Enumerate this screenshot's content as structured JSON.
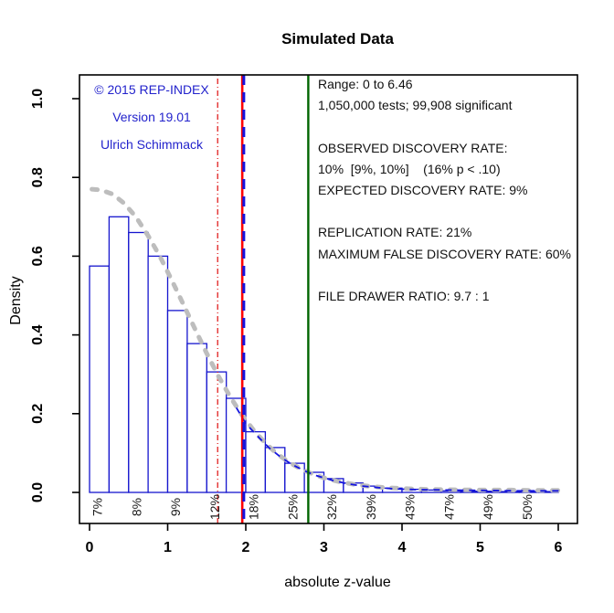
{
  "title": "Simulated Data",
  "axes": {
    "xlabel": "absolute z-value",
    "ylabel": "Density",
    "x_ticks": [
      "0",
      "1",
      "2",
      "3",
      "4",
      "5",
      "6"
    ],
    "y_ticks": [
      "0.0",
      "0.2",
      "0.4",
      "0.6",
      "0.8",
      "1.0"
    ]
  },
  "annotations": {
    "credit": {
      "color": "#2323CC",
      "lines": [
        "© 2015 REP-INDEX",
        "Version 19.01",
        "Ulrich Schimmack"
      ]
    },
    "stats": {
      "lines": [
        "Range: 0 to 6.46",
        "1,050,000 tests; 99,908 significant",
        "",
        "OBSERVED DISCOVERY RATE:",
        "10%  [9%, 10%]    (16% p < .10)",
        "EXPECTED DISCOVERY RATE: 9%",
        "",
        "REPLICATION RATE: 21%",
        "MAXIMUM FALSE DISCOVERY RATE: 60%",
        "",
        "FILE DRAWER RATIO: 9.7 : 1"
      ]
    }
  },
  "chart_data": {
    "type": "bar",
    "subtype": "histogram_with_density_curves",
    "title": "Simulated Data",
    "xlabel": "absolute z-value",
    "ylabel": "Density",
    "xlim": [
      0,
      6.37
    ],
    "ylim": [
      0,
      1.05
    ],
    "x_tick_values": [
      0,
      1,
      2,
      3,
      4,
      5,
      6
    ],
    "y_tick_values": [
      0.0,
      0.2,
      0.4,
      0.6,
      0.8,
      1.0
    ],
    "bin_start": 0,
    "bin_width": 0.25,
    "bar_densities": [
      0.575,
      0.7,
      0.66,
      0.6,
      0.462,
      0.378,
      0.306,
      0.239,
      0.154,
      0.114,
      0.074,
      0.051,
      0.035,
      0.024,
      0.016,
      0.011,
      0.008,
      0.006,
      0.004,
      0.003,
      0.003,
      0.002,
      0.002,
      0.002
    ],
    "power_labels": {
      "z": [
        0.1,
        0.6,
        1.1,
        1.6,
        2.1,
        2.6,
        3.1,
        3.6,
        4.1,
        4.6,
        5.1,
        5.6
      ],
      "text": [
        "7%",
        "8%",
        "9%",
        "12%",
        "18%",
        "25%",
        "32%",
        "39%",
        "43%",
        "47%",
        "49%",
        "50%"
      ]
    },
    "gray_density_curve": {
      "color": "#BDBDBD",
      "points": [
        [
          0.03,
          0.77
        ],
        [
          0.15,
          0.768
        ],
        [
          0.3,
          0.757
        ],
        [
          0.45,
          0.733
        ],
        [
          0.6,
          0.698
        ],
        [
          0.75,
          0.652
        ],
        [
          0.9,
          0.6
        ],
        [
          1.05,
          0.54
        ],
        [
          1.2,
          0.478
        ],
        [
          1.35,
          0.415
        ],
        [
          1.5,
          0.353
        ],
        [
          1.65,
          0.295
        ],
        [
          1.8,
          0.243
        ],
        [
          1.95,
          0.197
        ],
        [
          2.1,
          0.158
        ],
        [
          2.25,
          0.125
        ],
        [
          2.4,
          0.098
        ],
        [
          2.55,
          0.077
        ],
        [
          2.7,
          0.06
        ],
        [
          2.85,
          0.047
        ],
        [
          3.0,
          0.037
        ],
        [
          3.2,
          0.027
        ],
        [
          3.4,
          0.02
        ],
        [
          3.6,
          0.015
        ],
        [
          3.8,
          0.012
        ],
        [
          4.0,
          0.01
        ],
        [
          4.3,
          0.008
        ],
        [
          4.6,
          0.007
        ],
        [
          5.0,
          0.006
        ],
        [
          5.4,
          0.006
        ],
        [
          5.7,
          0.005
        ],
        [
          6.0,
          0.005
        ]
      ]
    },
    "blue_fit_curve": {
      "color": "#1414E0",
      "points": [
        [
          1.88,
          0.215
        ],
        [
          2.0,
          0.175
        ],
        [
          2.15,
          0.143
        ],
        [
          2.3,
          0.113
        ],
        [
          2.45,
          0.089
        ],
        [
          2.6,
          0.07
        ],
        [
          2.75,
          0.055
        ],
        [
          2.9,
          0.043
        ],
        [
          3.1,
          0.031
        ],
        [
          3.3,
          0.022
        ],
        [
          3.5,
          0.016
        ],
        [
          3.7,
          0.012
        ],
        [
          3.9,
          0.009
        ],
        [
          4.2,
          0.007
        ],
        [
          4.6,
          0.006
        ],
        [
          5.0,
          0.005
        ],
        [
          5.5,
          0.004
        ],
        [
          6.0,
          0.004
        ],
        [
          6.07,
          0.0
        ]
      ]
    },
    "vlines": [
      {
        "name": "z-1.65-marginal-line",
        "z": 1.64,
        "color": "#E02020",
        "style": "dashdot",
        "width": 1.3
      },
      {
        "name": "z-1.96-significance-line",
        "z": 1.955,
        "color": "#FF0000",
        "style": "solid",
        "width": 2.6
      },
      {
        "name": "z-2.0-criterion-line",
        "z": 1.975,
        "color": "#1414E0",
        "style": "dashed",
        "width": 3
      },
      {
        "name": "z-2.8-replicability-line",
        "z": 2.8,
        "color": "#006400",
        "style": "solid",
        "width": 2.4
      }
    ],
    "colors": {
      "bar_stroke": "#1515CE",
      "bar_fill": "#FFFFFF",
      "box": "#000000"
    }
  }
}
